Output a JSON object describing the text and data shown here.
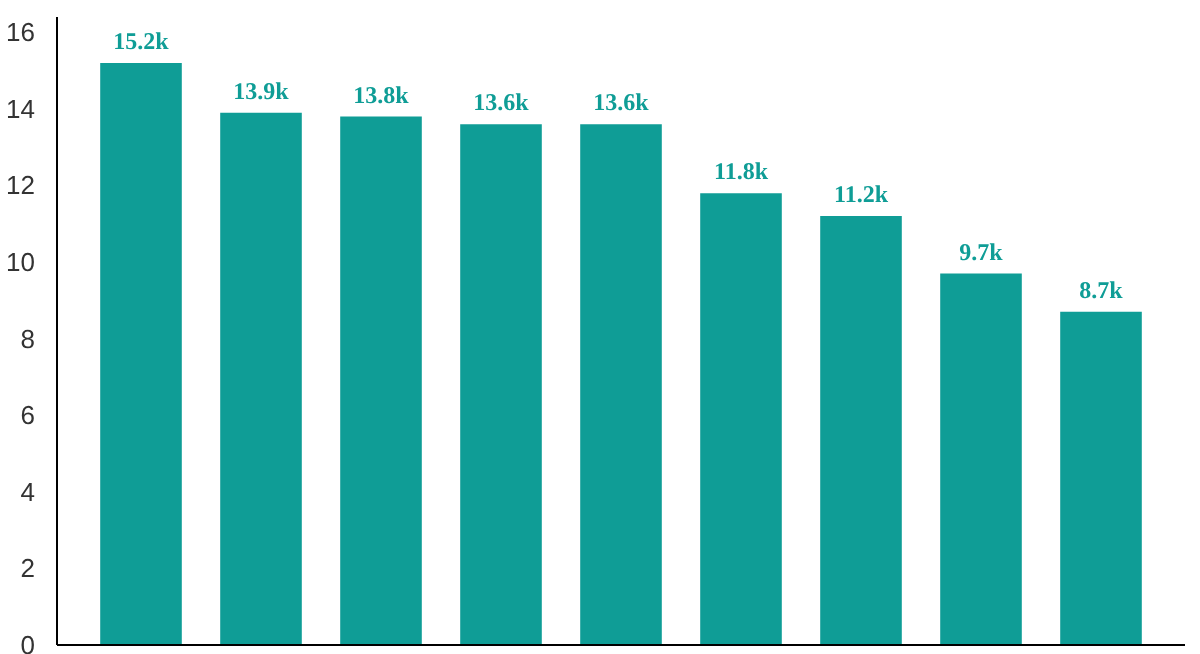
{
  "chart_data": {
    "type": "bar",
    "categories": [
      null,
      null,
      null,
      null,
      null,
      null,
      null,
      null,
      null
    ],
    "values": [
      15.2,
      13.9,
      13.8,
      13.6,
      13.6,
      11.8,
      11.2,
      9.7,
      8.7
    ],
    "value_labels": [
      "15.2k",
      "13.9k",
      "13.8k",
      "13.6k",
      "13.6k",
      "11.8k",
      "11.2k",
      "9.7k",
      "8.7k"
    ],
    "color": "#0f9d96",
    "ylim": [
      0,
      16.4
    ],
    "yticks": [
      0,
      2,
      4,
      6,
      8,
      10,
      12,
      14,
      16
    ],
    "grid": false
  }
}
